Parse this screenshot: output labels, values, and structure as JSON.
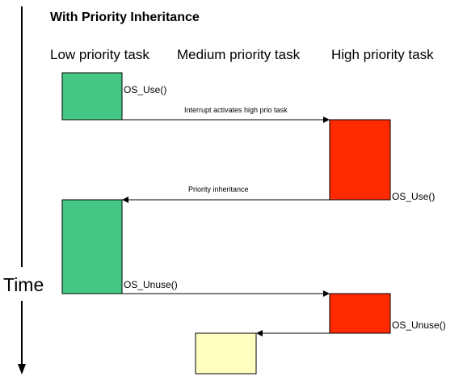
{
  "title": "With Priority Inheritance",
  "columns": {
    "low": "Low priority task",
    "medium": "Medium priority task",
    "high": "High priority task"
  },
  "time_label": "Time",
  "calls": {
    "low_use": "OS_Use()",
    "high_use": "OS_Use()",
    "low_unuse": "OS_Unuse()",
    "high_unuse": "OS_Unuse()"
  },
  "notes": {
    "interrupt": "Interrupt activates high prio task",
    "inheritance": "Priority inheritance"
  },
  "colors": {
    "low_task": "#44c784",
    "high_task": "#ff2a00",
    "medium_task": "#ffffc0",
    "outline": "#000000"
  }
}
